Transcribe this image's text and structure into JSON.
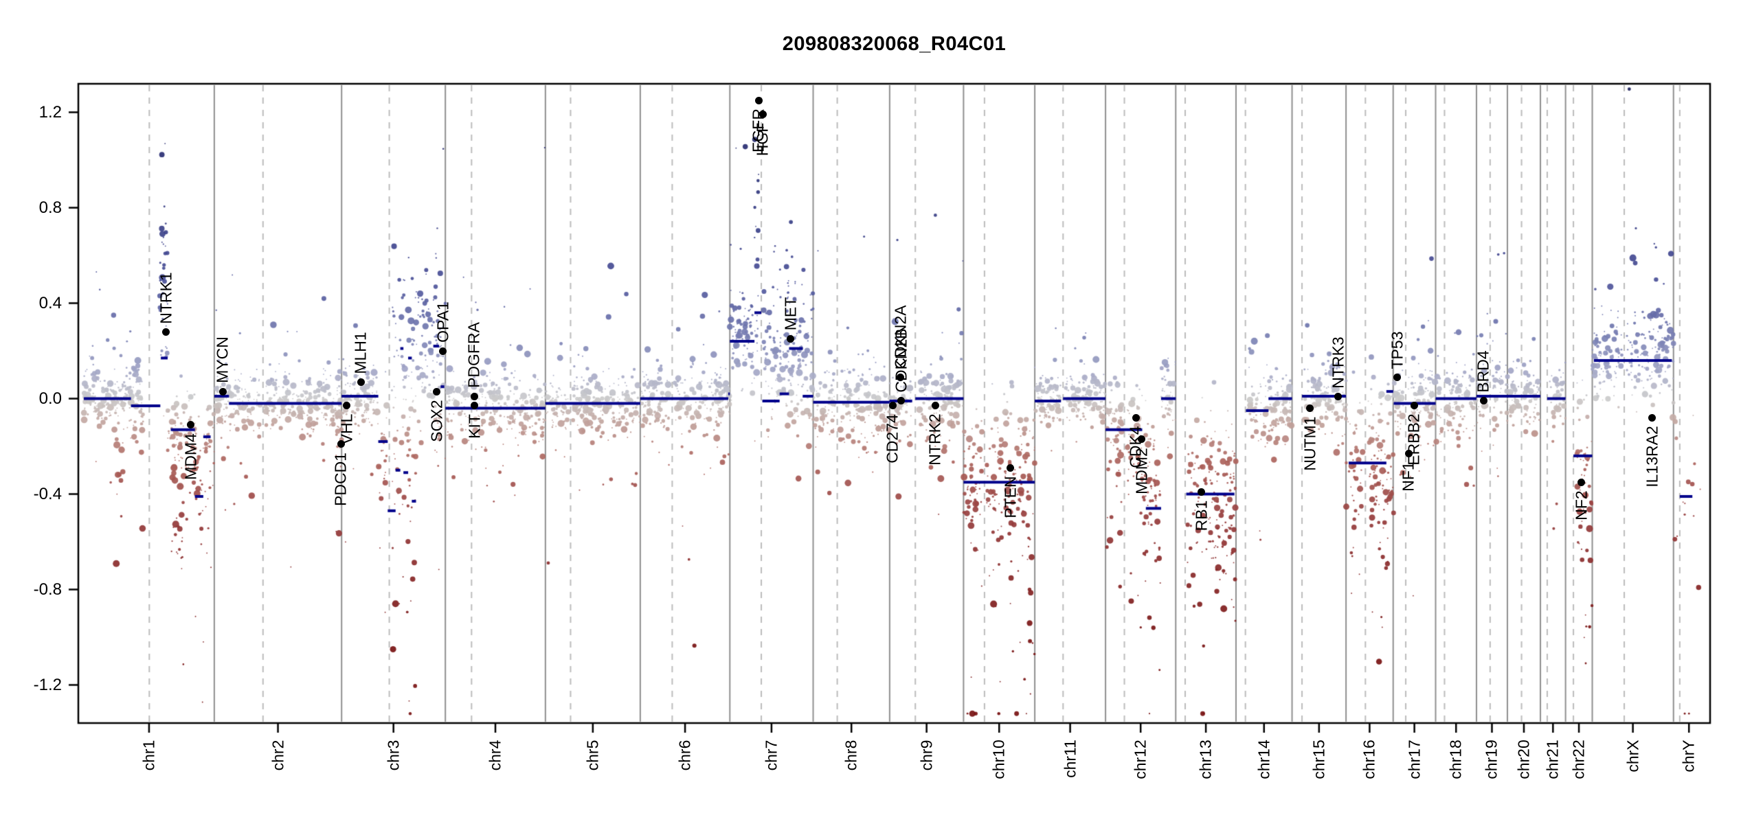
{
  "title": "209808320068_R04C01",
  "chart_data": {
    "type": "scatter",
    "title": "209808320068_R04C01",
    "xlabel": "",
    "ylabel": "",
    "ylim": [
      -1.35,
      1.35
    ],
    "yticks": [
      1.2,
      0.8,
      0.4,
      0.0,
      -0.4,
      -0.8,
      -1.2
    ],
    "ytick_labels": [
      "1.2",
      "0.8",
      "0.4",
      "0.0",
      "-0.4",
      "-0.8",
      "-1.2"
    ],
    "grid": "solid gray vertical lines at chromosome boundaries, dashed gray vertical lines at centromeres",
    "description": "Genome-wide copy-number log2-ratio plot; gray-blue points = gain, gray-red points = loss, navy horizontal lines = segment means, black dots = annotated cancer genes",
    "chromosomes": [
      {
        "name": "chr1",
        "length_mb": 249,
        "centromere_mb": 125,
        "segments": [
          [
            0,
            90,
            0.0
          ],
          [
            90,
            146,
            -0.03
          ],
          [
            147,
            160,
            0.17
          ],
          [
            166,
            212,
            -0.13
          ],
          [
            212,
            228,
            -0.41
          ],
          [
            228,
            242,
            -0.16
          ]
        ],
        "clouds": [
          [
            0,
            120,
            0.0,
            0.07,
            1.7,
            0
          ],
          [
            50,
            75,
            -0.28,
            0.17,
            0.35,
            -1
          ],
          [
            145,
            160,
            0.42,
            0.22,
            2.6,
            1
          ],
          [
            160,
            213,
            -0.13,
            0.1,
            1.6,
            -1
          ],
          [
            166,
            190,
            -0.42,
            0.16,
            1.0,
            -1
          ],
          [
            213,
            228,
            -0.36,
            0.15,
            1.7,
            -1
          ],
          [
            228,
            249,
            -0.15,
            0.1,
            1.6,
            -1
          ]
        ]
      },
      {
        "name": "chr2",
        "length_mb": 243,
        "centromere_mb": 93,
        "segments": [
          [
            0,
            28,
            0.01
          ],
          [
            28,
            243,
            -0.02
          ]
        ],
        "clouds": [
          [
            0,
            243,
            -0.01,
            0.065,
            1.6,
            0
          ],
          [
            232,
            243,
            -0.14,
            0.1,
            1.2,
            -1
          ]
        ]
      },
      {
        "name": "chr3",
        "length_mb": 198,
        "centromere_mb": 91,
        "segments": [
          [
            0,
            70,
            0.01
          ],
          [
            70,
            88,
            -0.18
          ],
          [
            88,
            103,
            -0.47
          ],
          [
            103,
            112,
            -0.3
          ],
          [
            112,
            118,
            0.21
          ],
          [
            118,
            127,
            -0.31
          ],
          [
            127,
            134,
            0.17
          ],
          [
            134,
            142,
            -0.43
          ],
          [
            175,
            186,
            0.22
          ],
          [
            189,
            196,
            0.05
          ]
        ],
        "clouds": [
          [
            0,
            70,
            0.0,
            0.07,
            1.6,
            0
          ],
          [
            70,
            91,
            -0.17,
            0.12,
            1.6,
            -1
          ],
          [
            91,
            142,
            -0.28,
            0.2,
            1.3,
            -1
          ],
          [
            91,
            142,
            0.22,
            0.16,
            0.9,
            1
          ],
          [
            142,
            198,
            0.16,
            0.15,
            1.7,
            1
          ],
          [
            170,
            198,
            -0.08,
            0.12,
            0.5,
            -1
          ]
        ]
      },
      {
        "name": "chr4",
        "length_mb": 191,
        "centromere_mb": 50,
        "segments": [
          [
            0,
            191,
            -0.04
          ]
        ],
        "clouds": [
          [
            0,
            191,
            -0.04,
            0.07,
            1.6,
            0
          ]
        ]
      },
      {
        "name": "chr5",
        "length_mb": 181,
        "centromere_mb": 48,
        "segments": [
          [
            0,
            181,
            -0.02
          ]
        ],
        "clouds": [
          [
            0,
            181,
            -0.02,
            0.065,
            1.6,
            0
          ]
        ]
      },
      {
        "name": "chr6",
        "length_mb": 171,
        "centromere_mb": 61,
        "segments": [
          [
            0,
            168,
            0.0
          ],
          [
            168,
            171,
            0.02
          ]
        ],
        "clouds": [
          [
            0,
            171,
            0.0,
            0.065,
            1.6,
            0
          ]
        ]
      },
      {
        "name": "chr7",
        "length_mb": 159,
        "centromere_mb": 60,
        "segments": [
          [
            0,
            47,
            0.24
          ],
          [
            47,
            60,
            0.36
          ],
          [
            62,
            95,
            -0.01
          ],
          [
            95,
            113,
            0.02
          ],
          [
            113,
            139,
            0.21
          ],
          [
            139,
            159,
            0.01
          ]
        ],
        "clouds": [
          [
            0,
            47,
            0.25,
            0.1,
            1.9,
            1
          ],
          [
            47,
            60,
            0.55,
            0.33,
            2.2,
            1
          ],
          [
            60,
            159,
            0.12,
            0.13,
            1.8,
            1
          ],
          [
            108,
            128,
            0.3,
            0.17,
            1.0,
            1
          ]
        ]
      },
      {
        "name": "chr8",
        "length_mb": 146,
        "centromere_mb": 46,
        "segments": [
          [
            0,
            146,
            -0.015
          ]
        ],
        "clouds": [
          [
            0,
            146,
            -0.02,
            0.07,
            1.6,
            0
          ]
        ]
      },
      {
        "name": "chr9",
        "length_mb": 141,
        "centromere_mb": 49,
        "segments": [
          [
            0,
            43,
            -0.01
          ],
          [
            49,
            141,
            0.0
          ]
        ],
        "clouds": [
          [
            0,
            141,
            -0.01,
            0.07,
            1.6,
            0
          ]
        ]
      },
      {
        "name": "chr10",
        "length_mb": 136,
        "centromere_mb": 40,
        "segments": [
          [
            0,
            136,
            -0.35
          ]
        ],
        "clouds": [
          [
            0,
            136,
            -0.33,
            0.17,
            1.8,
            -1
          ]
        ]
      },
      {
        "name": "chr11",
        "length_mb": 135,
        "centromere_mb": 54,
        "segments": [
          [
            0,
            50,
            -0.01
          ],
          [
            54,
            135,
            0.0
          ]
        ],
        "clouds": [
          [
            0,
            135,
            0.0,
            0.06,
            1.6,
            0
          ]
        ]
      },
      {
        "name": "chr12",
        "length_mb": 134,
        "centromere_mb": 36,
        "segments": [
          [
            0,
            70,
            -0.13
          ],
          [
            77,
            106,
            -0.46
          ],
          [
            106,
            134,
            0.0
          ]
        ],
        "clouds": [
          [
            0,
            66,
            -0.13,
            0.11,
            1.7,
            -1
          ],
          [
            66,
            106,
            -0.33,
            0.19,
            1.7,
            -1
          ],
          [
            106,
            134,
            0.0,
            0.07,
            1.6,
            0
          ]
        ]
      },
      {
        "name": "chr13",
        "length_mb": 115,
        "centromere_mb": 18,
        "segments": [
          [
            20,
            112,
            -0.4
          ]
        ],
        "clouds": [
          [
            19,
            115,
            -0.4,
            0.17,
            1.8,
            -1
          ]
        ]
      },
      {
        "name": "chr14",
        "length_mb": 107,
        "centromere_mb": 18,
        "segments": [
          [
            19,
            62,
            -0.05
          ],
          [
            62,
            107,
            0.0
          ]
        ],
        "clouds": [
          [
            19,
            107,
            -0.03,
            0.07,
            1.6,
            0
          ]
        ]
      },
      {
        "name": "chr15",
        "length_mb": 103,
        "centromere_mb": 19,
        "segments": [
          [
            19,
            103,
            0.01
          ]
        ],
        "clouds": [
          [
            19,
            103,
            0.0,
            0.07,
            1.6,
            0
          ]
        ]
      },
      {
        "name": "chr16",
        "length_mb": 90,
        "centromere_mb": 37,
        "segments": [
          [
            5,
            77,
            -0.27
          ],
          [
            77,
            90,
            0.03
          ]
        ],
        "clouds": [
          [
            0,
            90,
            -0.25,
            0.16,
            1.7,
            -1
          ]
        ]
      },
      {
        "name": "chr17",
        "length_mb": 81,
        "centromere_mb": 24,
        "segments": [
          [
            1,
            81,
            -0.02
          ]
        ],
        "clouds": [
          [
            0,
            81,
            -0.02,
            0.08,
            1.7,
            0
          ]
        ]
      },
      {
        "name": "chr18",
        "length_mb": 78,
        "centromere_mb": 17,
        "segments": [
          [
            0,
            78,
            0.0
          ]
        ],
        "clouds": [
          [
            0,
            78,
            0.0,
            0.06,
            1.6,
            0
          ]
        ]
      },
      {
        "name": "chr19",
        "length_mb": 59,
        "centromere_mb": 26,
        "segments": [
          [
            0,
            59,
            0.01
          ]
        ],
        "clouds": [
          [
            0,
            59,
            0.02,
            0.08,
            1.7,
            0
          ]
        ]
      },
      {
        "name": "chr20",
        "length_mb": 63,
        "centromere_mb": 27,
        "segments": [
          [
            0,
            63,
            0.01
          ]
        ],
        "clouds": [
          [
            0,
            63,
            0.01,
            0.06,
            1.6,
            0
          ]
        ]
      },
      {
        "name": "chr21",
        "length_mb": 48,
        "centromere_mb": 13,
        "segments": [
          [
            13,
            48,
            0.0
          ]
        ],
        "clouds": [
          [
            13,
            48,
            0.0,
            0.07,
            1.6,
            0
          ]
        ]
      },
      {
        "name": "chr22",
        "length_mb": 51,
        "centromere_mb": 15,
        "segments": [
          [
            15,
            51,
            -0.24
          ]
        ],
        "clouds": [
          [
            15,
            51,
            -0.25,
            0.16,
            1.8,
            -1
          ]
        ]
      },
      {
        "name": "chrX",
        "length_mb": 155,
        "centromere_mb": 61,
        "segments": [
          [
            3,
            152,
            0.16
          ]
        ],
        "clouds": [
          [
            0,
            155,
            0.16,
            0.1,
            1.7,
            1
          ]
        ]
      },
      {
        "name": "chrY",
        "length_mb": 59,
        "centromere_mb": 12,
        "segments": [
          [
            12,
            36,
            -0.41
          ]
        ],
        "clouds": [
          [
            2,
            57,
            -0.5,
            0.28,
            0.35,
            -1
          ]
        ]
      }
    ],
    "genes": [
      {
        "name": "NTRK1",
        "chrom": "chr1",
        "pos_mb": 156.8,
        "log2": 0.28,
        "label_side": "above"
      },
      {
        "name": "MDM4",
        "chrom": "chr1",
        "pos_mb": 204.5,
        "log2": -0.11,
        "label_side": "below"
      },
      {
        "name": "MYCN",
        "chrom": "chr2",
        "pos_mb": 16.1,
        "log2": 0.03,
        "label_side": "above"
      },
      {
        "name": "PDCD1",
        "chrom": "chr2",
        "pos_mb": 242.0,
        "log2": -0.19,
        "label_side": "below"
      },
      {
        "name": "VHL",
        "chrom": "chr3",
        "pos_mb": 10.2,
        "log2": -0.03,
        "label_side": "below"
      },
      {
        "name": "MLH1",
        "chrom": "chr3",
        "pos_mb": 37.0,
        "log2": 0.07,
        "label_side": "above"
      },
      {
        "name": "SOX2",
        "chrom": "chr3",
        "pos_mb": 181.7,
        "log2": 0.03,
        "label_side": "below"
      },
      {
        "name": "OPA1",
        "chrom": "chr3",
        "pos_mb": 193.3,
        "log2": 0.2,
        "label_side": "above"
      },
      {
        "name": "PDGFRA",
        "chrom": "chr4",
        "pos_mb": 55.1,
        "log2": 0.01,
        "label_side": "above"
      },
      {
        "name": "KIT",
        "chrom": "chr4",
        "pos_mb": 55.6,
        "log2": -0.03,
        "label_side": "below"
      },
      {
        "name": "EGFR",
        "chrom": "chr7",
        "pos_mb": 55.1,
        "log2": 1.25,
        "label_side": "below"
      },
      {
        "name": "HGF",
        "chrom": "chr7",
        "pos_mb": 63.0,
        "log2": 1.19,
        "label_side": "below"
      },
      {
        "name": "MET",
        "chrom": "chr7",
        "pos_mb": 116.3,
        "log2": 0.25,
        "label_side": "above"
      },
      {
        "name": "CD274",
        "chrom": "chr9",
        "pos_mb": 5.5,
        "log2": -0.03,
        "label_side": "below"
      },
      {
        "name": "CDKN2B",
        "chrom": "chr9",
        "pos_mb": 22.0,
        "log2": -0.01,
        "label_side": "above"
      },
      {
        "name": "CDKN2A",
        "chrom": "chr9",
        "pos_mb": 21.0,
        "log2": 0.09,
        "label_side": "above"
      },
      {
        "name": "NTRK2",
        "chrom": "chr9",
        "pos_mb": 87.3,
        "log2": -0.03,
        "label_side": "below"
      },
      {
        "name": "PTEN",
        "chrom": "chr10",
        "pos_mb": 89.7,
        "log2": -0.29,
        "label_side": "below"
      },
      {
        "name": "CDK4",
        "chrom": "chr12",
        "pos_mb": 58.1,
        "log2": -0.08,
        "label_side": "below"
      },
      {
        "name": "MDM2",
        "chrom": "chr12",
        "pos_mb": 69.2,
        "log2": -0.17,
        "label_side": "below"
      },
      {
        "name": "RB1",
        "chrom": "chr13",
        "pos_mb": 48.9,
        "log2": -0.39,
        "label_side": "below"
      },
      {
        "name": "NUTM1",
        "chrom": "chr15",
        "pos_mb": 34.6,
        "log2": -0.04,
        "label_side": "below"
      },
      {
        "name": "NTRK3",
        "chrom": "chr15",
        "pos_mb": 88.4,
        "log2": 0.01,
        "label_side": "above"
      },
      {
        "name": "TP53",
        "chrom": "chr17",
        "pos_mb": 7.6,
        "log2": 0.09,
        "label_side": "above"
      },
      {
        "name": "NF1",
        "chrom": "chr17",
        "pos_mb": 29.5,
        "log2": -0.23,
        "label_side": "below"
      },
      {
        "name": "ERBB2",
        "chrom": "chr17",
        "pos_mb": 39.7,
        "log2": -0.03,
        "label_side": "below"
      },
      {
        "name": "BRD4",
        "chrom": "chr19",
        "pos_mb": 13.2,
        "log2": -0.01,
        "label_side": "above"
      },
      {
        "name": "NF2",
        "chrom": "chr22",
        "pos_mb": 30.0,
        "log2": -0.35,
        "label_side": "below"
      },
      {
        "name": "IL13RA2",
        "chrom": "chrX",
        "pos_mb": 114.2,
        "log2": -0.08,
        "label_side": "below"
      }
    ],
    "colors": {
      "segment": "#00008b",
      "gene_marker": "#000000",
      "boundary_line": "#8f8f8f",
      "centromere_line": "#bcbcbc",
      "border": "#000000",
      "gradient": [
        [
          -1.0,
          "#781212"
        ],
        [
          -0.5,
          "#963c3c"
        ],
        [
          -0.25,
          "#ad655e"
        ],
        [
          -0.1,
          "#c2a49e"
        ],
        [
          0.0,
          "#cbcbcb"
        ],
        [
          0.1,
          "#a7aac8"
        ],
        [
          0.25,
          "#7a81b4"
        ],
        [
          0.5,
          "#4a5098"
        ],
        [
          1.0,
          "#2b3076"
        ],
        [
          1.3,
          "#20245e"
        ]
      ]
    }
  }
}
